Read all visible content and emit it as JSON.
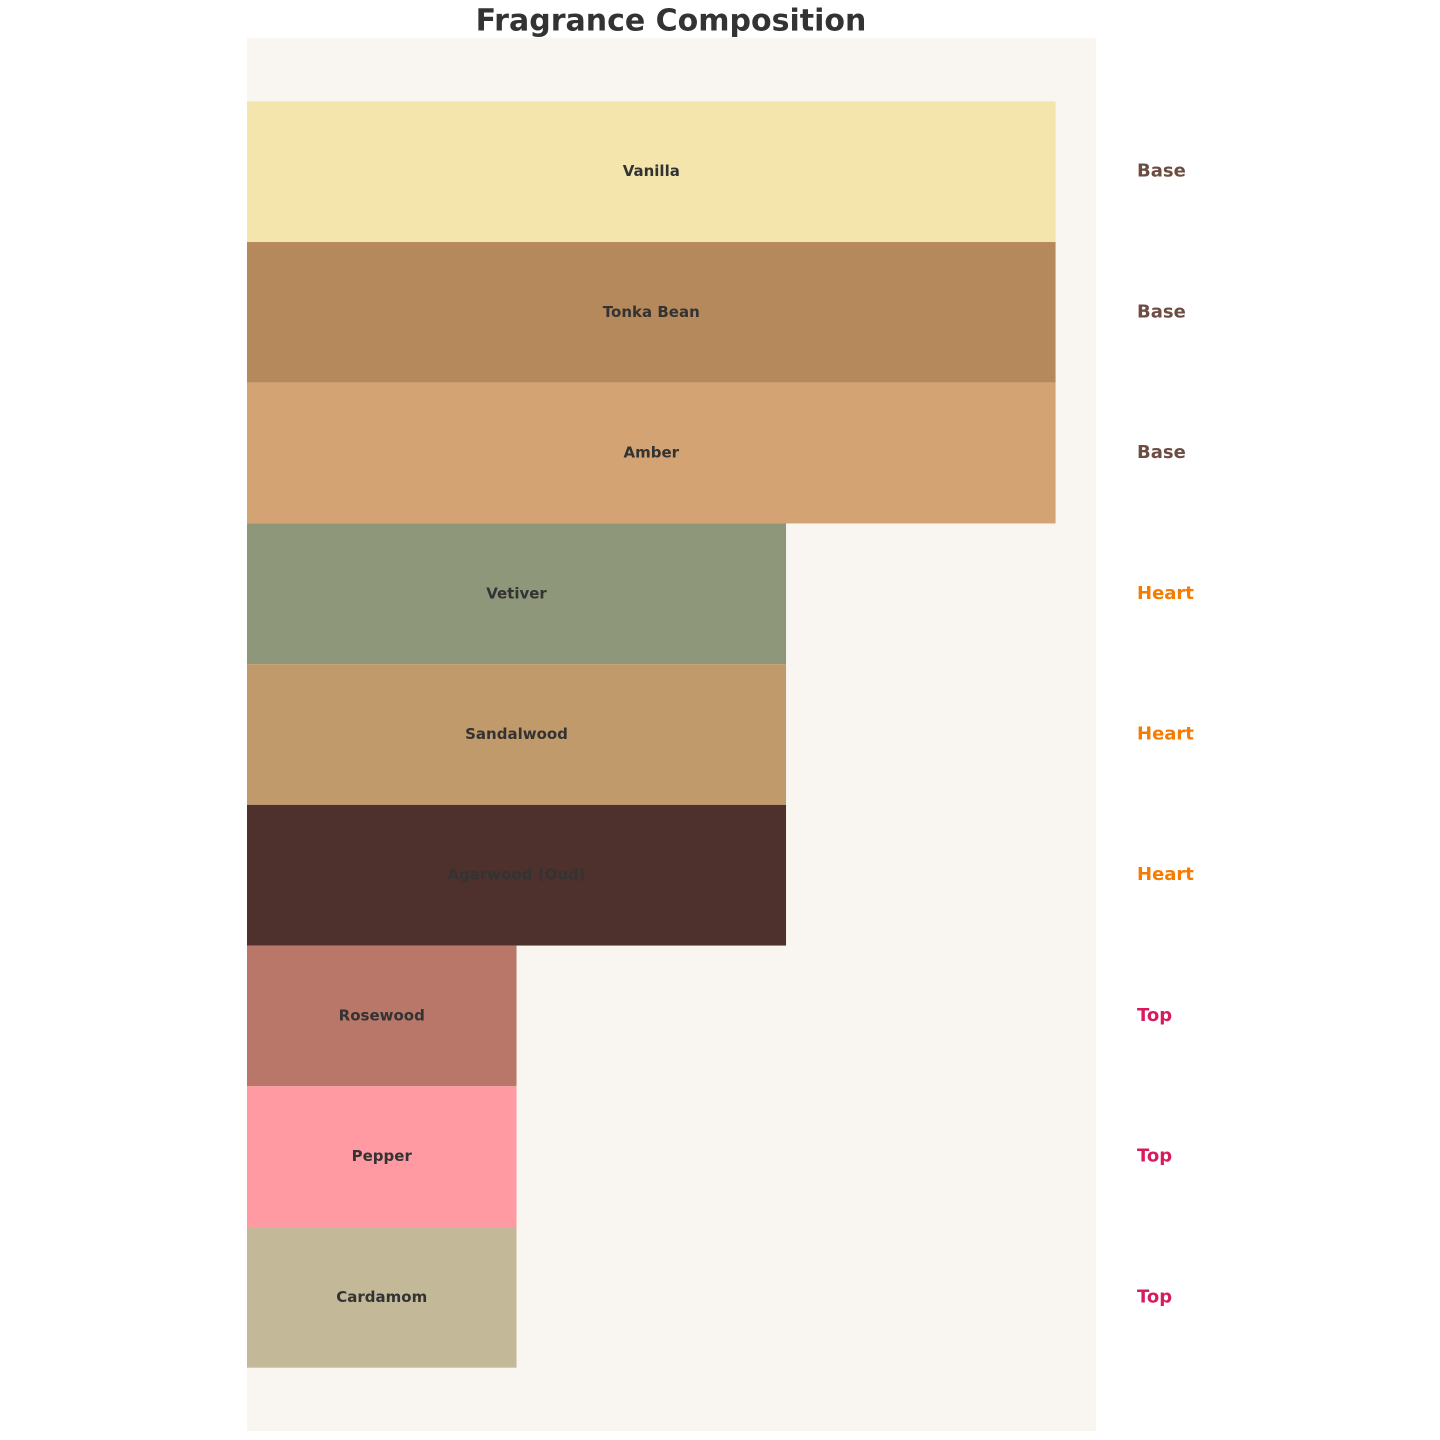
{
  "chart_data": {
    "type": "bar",
    "orientation": "horizontal",
    "title": "Fragrance Composition",
    "categories": [
      "Vanilla",
      "Tonka Bean",
      "Amber",
      "Vetiver",
      "Sandalwood",
      "Agarwood (Oud)",
      "Rosewood",
      "Pepper",
      "Cardamom"
    ],
    "values": [
      3,
      3,
      3,
      2,
      2,
      2,
      1,
      1,
      1
    ],
    "colors": [
      "#f3e5ab",
      "#b5895c",
      "#d4a373",
      "#8f977a",
      "#c19a6b",
      "#4e312d",
      "#b87769",
      "#ff9aa2",
      "#c3b897"
    ],
    "layers": [
      "Base",
      "Base",
      "Base",
      "Heart",
      "Heart",
      "Heart",
      "Top",
      "Top",
      "Top"
    ],
    "layer_colors": {
      "Base": "#6d4c41",
      "Heart": "#f57c00",
      "Top": "#d81b60"
    },
    "xlim": [
      0,
      3.15
    ],
    "background": "#f9f6f2"
  }
}
